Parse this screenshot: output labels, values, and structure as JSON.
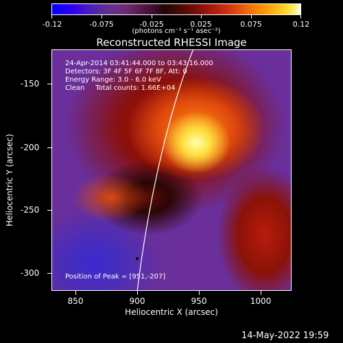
{
  "colorbar": {
    "ticks": [
      "-0.12",
      "-0.075",
      "-0.025",
      "0.025",
      "0.075",
      "0.12"
    ],
    "units": "(photons cm⁻² s⁻¹ asec⁻²)"
  },
  "title": "Reconstructed RHESSI Image",
  "info": {
    "time": "24-Apr-2014 03:41:44.000 to 03:43:16.000",
    "detectors": "Detectors: 3F 4F 5F 6F 7F 8F, Att: 0",
    "energy": "Energy Range: 3.0 - 6.0 keV",
    "clean": "Clean     Total counts: 1.66E+04",
    "peak": "Position of Peak = [951,-207]"
  },
  "chart_data": {
    "type": "heatmap",
    "title": "Reconstructed RHESSI Image",
    "xlabel": "Heliocentric X (arcsec)",
    "ylabel": "Heliocentric Y (arcsec)",
    "xticks": [
      "850",
      "900",
      "950",
      "1000"
    ],
    "yticks": [
      "-150",
      "-200",
      "-250",
      "-300"
    ],
    "xlim": [
      832,
      1025
    ],
    "ylim": [
      -316,
      -122
    ],
    "colorbar_range": [
      -0.12,
      0.12
    ],
    "peak_position": [
      951,
      -207
    ],
    "grid": false
  },
  "timestamp": "14-May-2022 19:59"
}
